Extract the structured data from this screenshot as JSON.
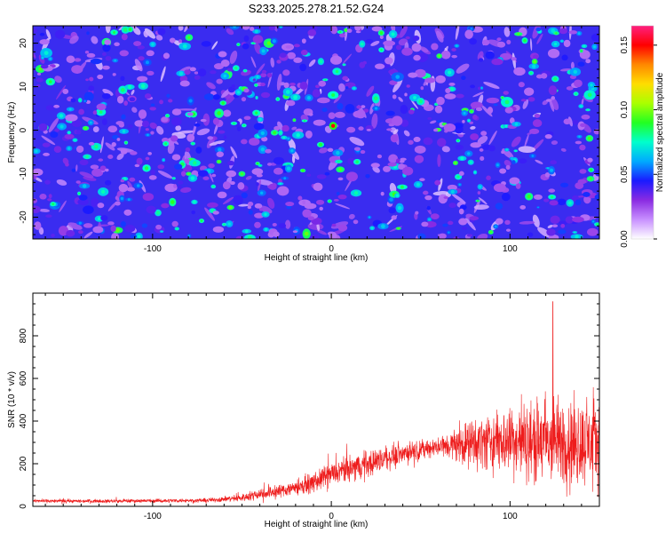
{
  "title": "S233.2025.278.21.52.G24",
  "colors": {
    "frame": "#000000",
    "snr_line": "#ee1c1c",
    "colormap": [
      "#ffffff",
      "#c890ff",
      "#8a2be2",
      "#1a1aff",
      "#00aaff",
      "#00ffcc",
      "#22ff22",
      "#aaff00",
      "#ffdd00",
      "#ff8800",
      "#ff0000",
      "#ff2080"
    ]
  },
  "chart_data": [
    {
      "type": "heatmap",
      "xlabel": "Height of straight line (km)",
      "ylabel": "Frequency (Hz)",
      "xlim": [
        -167,
        150
      ],
      "ylim": [
        -25,
        24
      ],
      "x_ticks": [
        -100,
        0,
        100
      ],
      "x_tick_labels": [
        "-100",
        "0",
        "100"
      ],
      "y_ticks": [
        -20,
        -10,
        0,
        10,
        20
      ],
      "y_tick_labels": [
        "-20",
        "-10",
        "0",
        "10",
        "20"
      ],
      "colorbar": {
        "label": "Normalized spectral amplitude",
        "range": [
          0,
          0.165
        ],
        "ticks": [
          0,
          0.05,
          0.1,
          0.15
        ],
        "tick_labels": [
          "0.00",
          "0.05",
          "0.10",
          "0.15"
        ]
      },
      "peak": {
        "x": 1,
        "y": 1,
        "value": 0.15
      },
      "typical_amplitude": [
        0.02,
        0.07
      ]
    },
    {
      "type": "line",
      "xlabel": "Height of straight line (km)",
      "ylabel": "SNR (10 * v/v)",
      "xlim": [
        -167,
        150
      ],
      "ylim": [
        0,
        1000
      ],
      "x_ticks": [
        -100,
        0,
        100
      ],
      "x_tick_labels": [
        "-100",
        "0",
        "100"
      ],
      "y_ticks": [
        0,
        200,
        400,
        600,
        800
      ],
      "y_tick_labels": [
        "0",
        "200",
        "400",
        "600",
        "800"
      ],
      "envelope": {
        "x": [
          -167,
          -120,
          -70,
          -50,
          -40,
          -30,
          -10,
          0,
          20,
          40,
          60,
          80,
          100,
          120,
          150
        ],
        "mean": [
          25,
          25,
          28,
          40,
          60,
          70,
          110,
          150,
          200,
          250,
          280,
          300,
          310,
          300,
          300
        ],
        "spread": [
          12,
          12,
          14,
          25,
          40,
          45,
          65,
          80,
          95,
          70,
          60,
          170,
          230,
          300,
          280
        ]
      },
      "max": {
        "x": 124,
        "value": 960
      }
    }
  ]
}
